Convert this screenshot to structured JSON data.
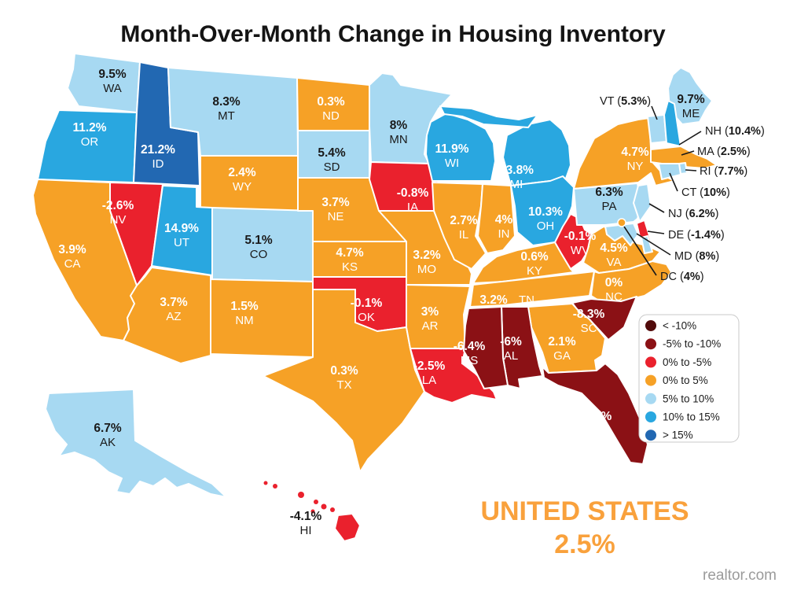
{
  "title": "Month-Over-Month Change in Housing Inventory",
  "source": "realtor.com",
  "summary": {
    "label": "UNITED STATES",
    "value": "2.5%"
  },
  "legend": [
    {
      "key": "lt-neg10",
      "label": "< -10%",
      "color": "#520B0B"
    },
    {
      "key": "neg5-neg10",
      "label": "-5% to -10%",
      "color": "#8B1115"
    },
    {
      "key": "0-neg5",
      "label": "0% to -5%",
      "color": "#EA212D"
    },
    {
      "key": "0-5",
      "label": "0% to 5%",
      "color": "#F6A126"
    },
    {
      "key": "5-10",
      "label": "5% to 10%",
      "color": "#A7D9F2"
    },
    {
      "key": "10-15",
      "label": "10% to 15%",
      "color": "#29A7E0"
    },
    {
      "key": "gt15",
      "label": "> 15%",
      "color": "#2268B2"
    }
  ],
  "states": [
    {
      "code": "WA",
      "value": "9.5%",
      "bucket": "5-10"
    },
    {
      "code": "OR",
      "value": "11.2%",
      "bucket": "10-15"
    },
    {
      "code": "ID",
      "value": "21.2%",
      "bucket": "gt15"
    },
    {
      "code": "MT",
      "value": "8.3%",
      "bucket": "5-10"
    },
    {
      "code": "WY",
      "value": "2.4%",
      "bucket": "0-5"
    },
    {
      "code": "NV",
      "value": "-2.6%",
      "bucket": "0-neg5"
    },
    {
      "code": "UT",
      "value": "14.9%",
      "bucket": "10-15"
    },
    {
      "code": "CO",
      "value": "5.1%",
      "bucket": "5-10"
    },
    {
      "code": "CA",
      "value": "3.9%",
      "bucket": "0-5"
    },
    {
      "code": "AZ",
      "value": "3.7%",
      "bucket": "0-5"
    },
    {
      "code": "NM",
      "value": "1.5%",
      "bucket": "0-5"
    },
    {
      "code": "ND",
      "value": "0.3%",
      "bucket": "0-5"
    },
    {
      "code": "SD",
      "value": "5.4%",
      "bucket": "5-10"
    },
    {
      "code": "NE",
      "value": "3.7%",
      "bucket": "0-5"
    },
    {
      "code": "KS",
      "value": "4.7%",
      "bucket": "0-5"
    },
    {
      "code": "OK",
      "value": "-0.1%",
      "bucket": "0-neg5"
    },
    {
      "code": "TX",
      "value": "0.3%",
      "bucket": "0-5"
    },
    {
      "code": "MN",
      "value": "8%",
      "bucket": "5-10"
    },
    {
      "code": "IA",
      "value": "-0.8%",
      "bucket": "0-neg5"
    },
    {
      "code": "MO",
      "value": "3.2%",
      "bucket": "0-5"
    },
    {
      "code": "AR",
      "value": "3%",
      "bucket": "0-5"
    },
    {
      "code": "LA",
      "value": "-2.5%",
      "bucket": "0-neg5"
    },
    {
      "code": "WI",
      "value": "11.9%",
      "bucket": "10-15"
    },
    {
      "code": "IL",
      "value": "2.7%",
      "bucket": "0-5"
    },
    {
      "code": "IN",
      "value": "4%",
      "bucket": "0-5"
    },
    {
      "code": "MI",
      "value": "13.8%",
      "bucket": "10-15"
    },
    {
      "code": "OH",
      "value": "10.3%",
      "bucket": "10-15"
    },
    {
      "code": "KY",
      "value": "0.6%",
      "bucket": "0-5"
    },
    {
      "code": "TN",
      "value": "3.2%",
      "bucket": "0-5"
    },
    {
      "code": "WV",
      "value": "-0.1%",
      "bucket": "0-neg5"
    },
    {
      "code": "VA",
      "value": "4.5%",
      "bucket": "0-5"
    },
    {
      "code": "NC",
      "value": "0%",
      "bucket": "0-5"
    },
    {
      "code": "SC",
      "value": "-8.3%",
      "bucket": "neg5-neg10"
    },
    {
      "code": "GA",
      "value": "2.1%",
      "bucket": "0-5"
    },
    {
      "code": "AL",
      "value": "-6%",
      "bucket": "neg5-neg10"
    },
    {
      "code": "MS",
      "value": "-6.4%",
      "bucket": "neg5-neg10"
    },
    {
      "code": "FL",
      "value": "-6.4%",
      "bucket": "neg5-neg10"
    },
    {
      "code": "NY",
      "value": "4.7%",
      "bucket": "0-5"
    },
    {
      "code": "PA",
      "value": "6.3%",
      "bucket": "5-10"
    },
    {
      "code": "ME",
      "value": "9.7%",
      "bucket": "5-10"
    },
    {
      "code": "AK",
      "value": "6.7%",
      "bucket": "5-10"
    },
    {
      "code": "HI",
      "value": "-4.1%",
      "bucket": "0-neg5"
    },
    {
      "code": "VT",
      "value": "5.3%",
      "bucket": "5-10"
    },
    {
      "code": "NH",
      "value": "10.4%",
      "bucket": "10-15"
    },
    {
      "code": "MA",
      "value": "2.5%",
      "bucket": "0-5"
    },
    {
      "code": "RI",
      "value": "7.7%",
      "bucket": "5-10"
    },
    {
      "code": "CT",
      "value": "10%",
      "bucket": "5-10"
    },
    {
      "code": "NJ",
      "value": "6.2%",
      "bucket": "5-10"
    },
    {
      "code": "DE",
      "value": "-1.4%",
      "bucket": "0-neg5"
    },
    {
      "code": "MD",
      "value": "8%",
      "bucket": "5-10"
    },
    {
      "code": "DC",
      "value": "4%",
      "bucket": "0-5"
    }
  ]
}
